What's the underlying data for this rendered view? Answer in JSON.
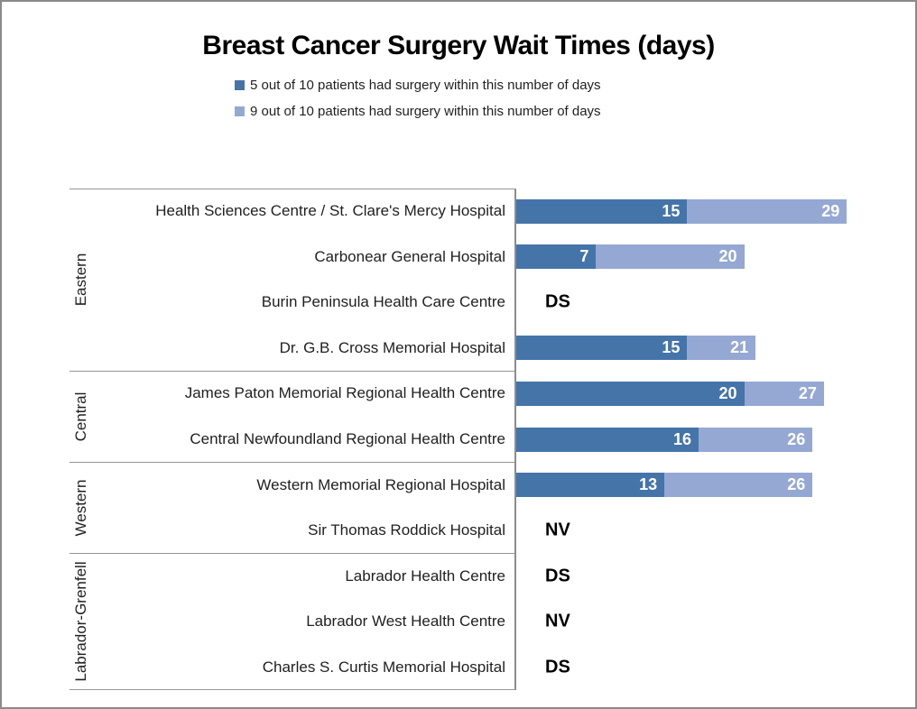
{
  "title": "Breast Cancer Surgery Wait Times (days)",
  "legend": [
    {
      "label": "5 out of 10 patients had surgery within this number of days",
      "color": "#4574a9"
    },
    {
      "label": "9 out of 10 patients had surgery within this number of days",
      "color": "#95a8d3"
    }
  ],
  "chart_data": {
    "type": "bar",
    "orientation": "horizontal",
    "stacked": true,
    "title": "Breast Cancer Surgery Wait Times (days)",
    "xlim": [
      0,
      35
    ],
    "axis_visible": false,
    "grid": false,
    "legend_position": "top",
    "series_colors": {
      "p50": "#4574a9",
      "p90": "#95a8d3"
    },
    "series_names": {
      "p50": "5 out of 10 patients had surgery within this number of days",
      "p90": "9 out of 10 patients had surgery within this number of days"
    },
    "groups": [
      {
        "region": "Eastern",
        "rows": [
          {
            "hospital": "Health Sciences Centre / St. Clare's Mercy Hospital",
            "p50": 15,
            "p90": 29
          },
          {
            "hospital": "Carbonear General Hospital",
            "p50": 7,
            "p90": 20
          },
          {
            "hospital": "Burin Peninsula Health Care Centre",
            "note": "DS"
          },
          {
            "hospital": "Dr. G.B. Cross Memorial Hospital",
            "p50": 15,
            "p90": 21
          }
        ]
      },
      {
        "region": "Central",
        "rows": [
          {
            "hospital": "James Paton Memorial Regional Health Centre",
            "p50": 20,
            "p90": 27
          },
          {
            "hospital": "Central Newfoundland Regional Health Centre",
            "p50": 16,
            "p90": 26
          }
        ]
      },
      {
        "region": "Western",
        "rows": [
          {
            "hospital": "Western Memorial Regional Hospital",
            "p50": 13,
            "p90": 26
          },
          {
            "hospital": "Sir Thomas Roddick Hospital",
            "note": "NV"
          }
        ]
      },
      {
        "region": "Labrador-Grenfell",
        "rows": [
          {
            "hospital": "Labrador Health Centre",
            "note": "DS"
          },
          {
            "hospital": "Labrador West Health Centre",
            "note": "NV"
          },
          {
            "hospital": "Charles S. Curtis Memorial Hospital",
            "note": "DS"
          }
        ]
      }
    ]
  }
}
